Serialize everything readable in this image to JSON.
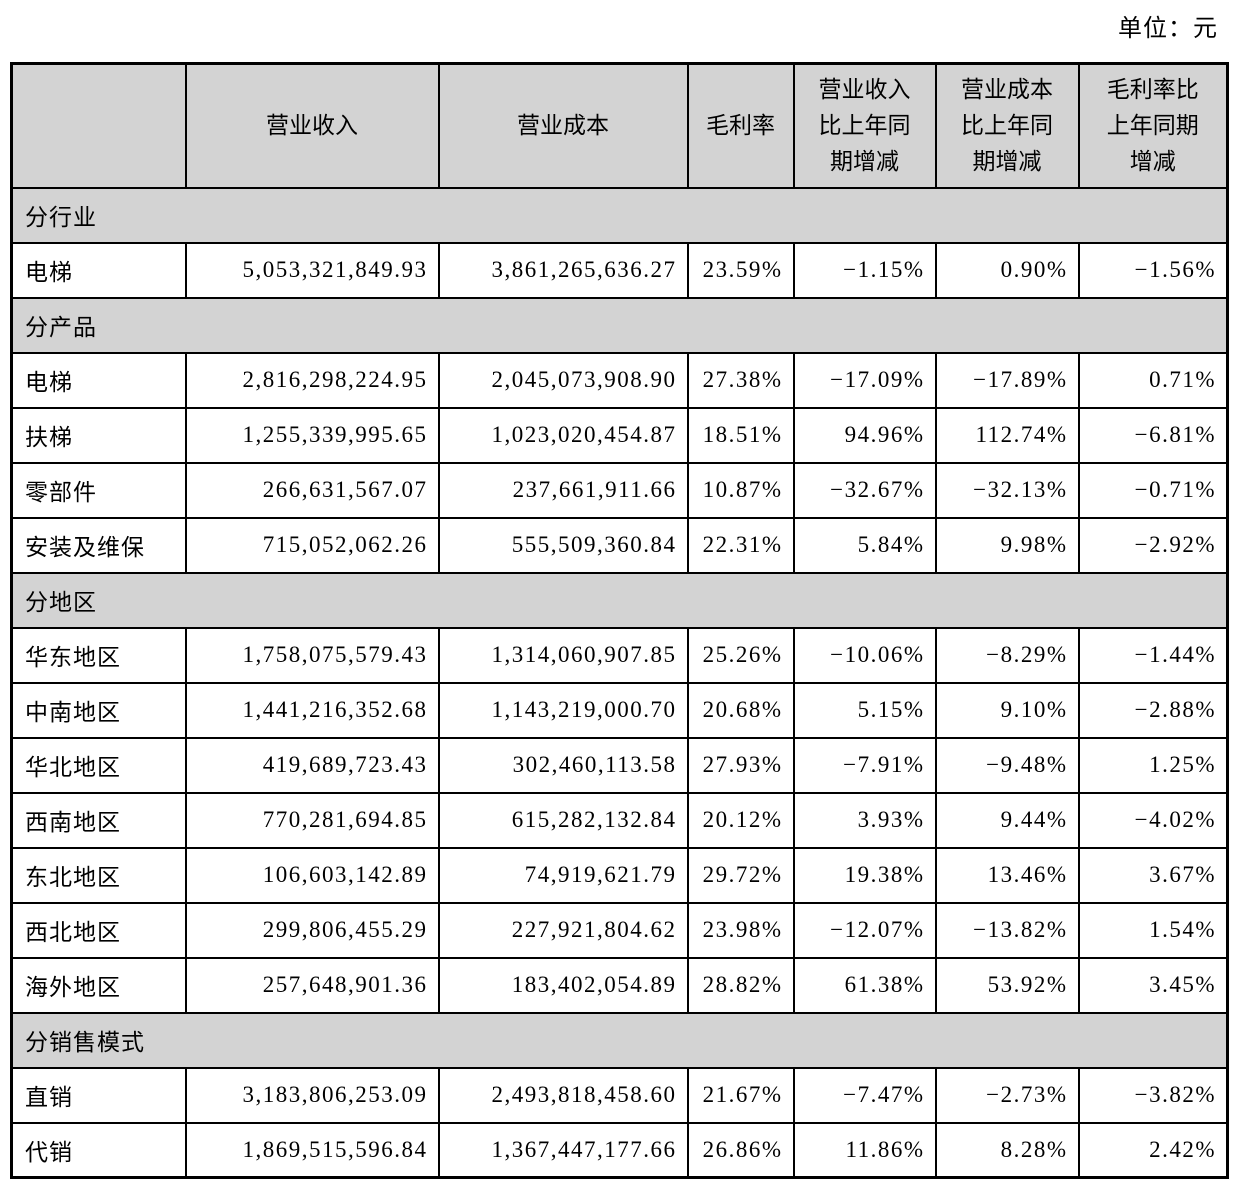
{
  "unit_label": "单位：元",
  "colors": {
    "header_bg": "#d3d3d3",
    "border": "#000000",
    "text": "#000000",
    "row_bg": "#ffffff"
  },
  "table": {
    "columns": [
      "",
      "营业收入",
      "营业成本",
      "毛利率",
      "营业收入\n比上年同\n期增减",
      "营业成本\n比上年同\n期增减",
      "毛利率比\n上年同期\n增减"
    ],
    "sections": [
      {
        "title": "分行业",
        "rows": [
          [
            "电梯",
            "5,053,321,849.93",
            "3,861,265,636.27",
            "23.59%",
            "−1.15%",
            "0.90%",
            "−1.56%"
          ]
        ]
      },
      {
        "title": "分产品",
        "rows": [
          [
            "电梯",
            "2,816,298,224.95",
            "2,045,073,908.90",
            "27.38%",
            "−17.09%",
            "−17.89%",
            "0.71%"
          ],
          [
            "扶梯",
            "1,255,339,995.65",
            "1,023,020,454.87",
            "18.51%",
            "94.96%",
            "112.74%",
            "−6.81%"
          ],
          [
            "零部件",
            "266,631,567.07",
            "237,661,911.66",
            "10.87%",
            "−32.67%",
            "−32.13%",
            "−0.71%"
          ],
          [
            "安装及维保",
            "715,052,062.26",
            "555,509,360.84",
            "22.31%",
            "5.84%",
            "9.98%",
            "−2.92%"
          ]
        ]
      },
      {
        "title": "分地区",
        "rows": [
          [
            "华东地区",
            "1,758,075,579.43",
            "1,314,060,907.85",
            "25.26%",
            "−10.06%",
            "−8.29%",
            "−1.44%"
          ],
          [
            "中南地区",
            "1,441,216,352.68",
            "1,143,219,000.70",
            "20.68%",
            "5.15%",
            "9.10%",
            "−2.88%"
          ],
          [
            "华北地区",
            "419,689,723.43",
            "302,460,113.58",
            "27.93%",
            "−7.91%",
            "−9.48%",
            "1.25%"
          ],
          [
            "西南地区",
            "770,281,694.85",
            "615,282,132.84",
            "20.12%",
            "3.93%",
            "9.44%",
            "−4.02%"
          ],
          [
            "东北地区",
            "106,603,142.89",
            "74,919,621.79",
            "29.72%",
            "19.38%",
            "13.46%",
            "3.67%"
          ],
          [
            "西北地区",
            "299,806,455.29",
            "227,921,804.62",
            "23.98%",
            "−12.07%",
            "−13.82%",
            "1.54%"
          ],
          [
            "海外地区",
            "257,648,901.36",
            "183,402,054.89",
            "28.82%",
            "61.38%",
            "53.92%",
            "3.45%"
          ]
        ]
      },
      {
        "title": "分销售模式",
        "rows": [
          [
            "直销",
            "3,183,806,253.09",
            "2,493,818,458.60",
            "21.67%",
            "−7.47%",
            "−2.73%",
            "−3.82%"
          ],
          [
            "代销",
            "1,869,515,596.84",
            "1,367,447,177.66",
            "26.86%",
            "11.86%",
            "8.28%",
            "2.42%"
          ]
        ]
      }
    ]
  }
}
